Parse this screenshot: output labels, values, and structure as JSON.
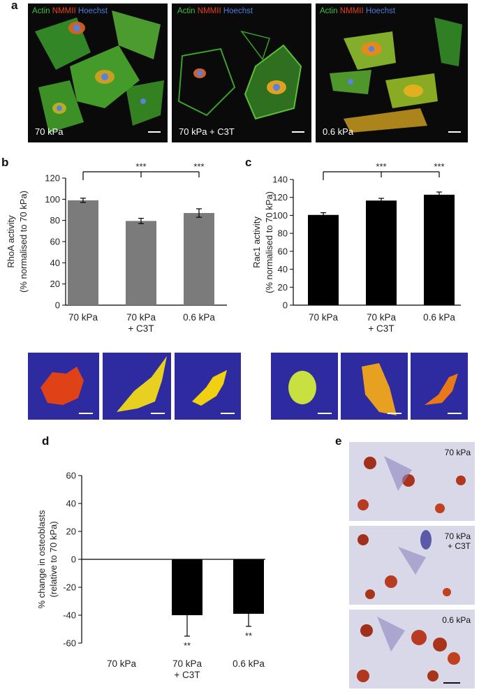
{
  "panels": {
    "a": {
      "letter": "a",
      "images": [
        {
          "stain_actin": "Actin",
          "stain_nmm": "NMMII",
          "stain_hoechst": "Hoechst",
          "condition": "70 kPa"
        },
        {
          "stain_actin": "Actin",
          "stain_nmm": "NMMII",
          "stain_hoechst": "Hoechst",
          "condition": "70 kPa + C3T"
        },
        {
          "stain_actin": "Actin",
          "stain_nmm": "NMMII",
          "stain_hoechst": "Hoechst",
          "condition": "0.6 kPa"
        }
      ],
      "colors": {
        "actin": "#3cc23c",
        "nmm": "#e8401c",
        "hoechst": "#4a7de0"
      }
    },
    "b": {
      "letter": "b"
    },
    "c": {
      "letter": "c"
    },
    "d": {
      "letter": "d"
    },
    "e": {
      "letter": "e",
      "images": [
        {
          "line1": "70 kPa",
          "line2": ""
        },
        {
          "line1": "70 kPa",
          "line2": "+ C3T"
        },
        {
          "line1": "0.6 kPa",
          "line2": ""
        }
      ]
    }
  },
  "chart_data": [
    {
      "id": "b",
      "type": "bar",
      "categories": [
        [
          "70 kPa"
        ],
        [
          "70 kPa",
          "+ C3T"
        ],
        [
          "0.6 kPa"
        ]
      ],
      "values": [
        99,
        79.5,
        87
      ],
      "errors": [
        2,
        2.5,
        4
      ],
      "ylabel_line1": "RhoA activity",
      "ylabel_line2": "(% normalised to 70 kPa)",
      "ylim": [
        0,
        120
      ],
      "yticks": [
        0,
        20,
        40,
        60,
        80,
        100,
        120
      ],
      "significance": [
        "***",
        "***"
      ],
      "bar_color": "#7b7b7b"
    },
    {
      "id": "c",
      "type": "bar",
      "categories": [
        [
          "70 kPa"
        ],
        [
          "70 kPa",
          "+ C3T"
        ],
        [
          "0.6 kPa"
        ]
      ],
      "values": [
        100.5,
        116.5,
        123
      ],
      "errors": [
        2.5,
        2.5,
        3
      ],
      "ylabel_line1": "Rac1 activity",
      "ylabel_line2": "(% normalised to 70 kPa)",
      "ylim": [
        0,
        140
      ],
      "yticks": [
        0,
        20,
        40,
        60,
        80,
        100,
        120,
        140
      ],
      "significance": [
        "***",
        "***"
      ],
      "bar_color": "#000000"
    },
    {
      "id": "d",
      "type": "bar",
      "categories": [
        [
          "70 kPa"
        ],
        [
          "70 kPa",
          "+ C3T"
        ],
        [
          "0.6 kPa"
        ]
      ],
      "values": [
        0,
        -40,
        -39
      ],
      "errors": [
        0,
        15,
        9
      ],
      "ylabel_line1": "% change in osteoblasts",
      "ylabel_line2": "(relative to 70 kPa)",
      "ylim": [
        -60,
        60
      ],
      "yticks": [
        -60,
        -40,
        -20,
        0,
        20,
        40,
        60
      ],
      "bar_labels": [
        "",
        "**",
        "**"
      ],
      "bar_color": "#000000"
    }
  ]
}
